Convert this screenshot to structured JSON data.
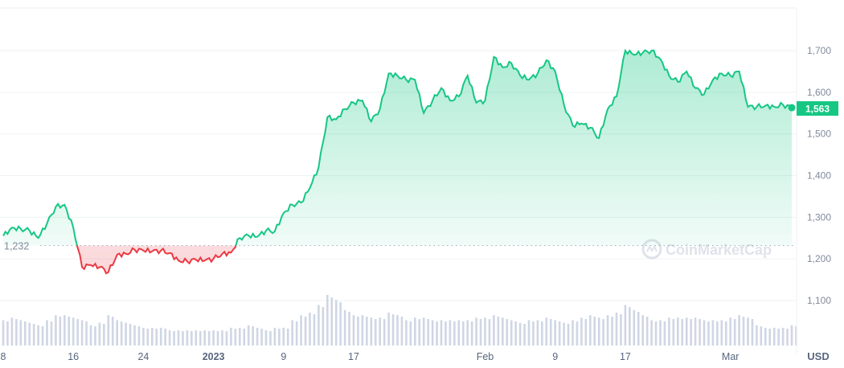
{
  "chart_data": {
    "type": "line",
    "title": "",
    "currency_label": "USD",
    "watermark": "CoinMarketCap",
    "baseline": 1232,
    "baseline_label": "1,232",
    "current_value": 1563,
    "current_label": "1,563",
    "ylim": [
      1000,
      1800
    ],
    "y_ticks": [
      1100,
      1200,
      1300,
      1400,
      1500,
      1600,
      1700
    ],
    "y_tick_labels": [
      "1,100",
      "1,200",
      "1,300",
      "1,400",
      "1,500",
      "1,600",
      "1,700"
    ],
    "x_start": "2022-12-08",
    "x_ticks": [
      {
        "date": "2022-12-08",
        "label": "8",
        "bold": false
      },
      {
        "date": "2022-12-16",
        "label": "16",
        "bold": false
      },
      {
        "date": "2022-12-24",
        "label": "24",
        "bold": false
      },
      {
        "date": "2023-01-01",
        "label": "2023",
        "bold": true
      },
      {
        "date": "2023-01-09",
        "label": "9",
        "bold": false
      },
      {
        "date": "2023-01-17",
        "label": "17",
        "bold": false
      },
      {
        "date": "2023-02-01",
        "label": "Feb",
        "bold": false
      },
      {
        "date": "2023-02-09",
        "label": "9",
        "bold": false
      },
      {
        "date": "2023-02-17",
        "label": "17",
        "bold": false
      },
      {
        "date": "2023-03-01",
        "label": "Mar",
        "bold": false
      }
    ],
    "colors": {
      "up": "#16c784",
      "down": "#ea3943",
      "volume": "#cfd6e4",
      "grid": "#eff2f5",
      "label": "#808a9d"
    },
    "daily_prices": [
      1255,
      1275,
      1272,
      1268,
      1250,
      1285,
      1325,
      1330,
      1275,
      1180,
      1185,
      1180,
      1168,
      1210,
      1212,
      1222,
      1220,
      1218,
      1220,
      1214,
      1196,
      1194,
      1198,
      1196,
      1200,
      1212,
      1215,
      1250,
      1256,
      1253,
      1268,
      1266,
      1310,
      1330,
      1335,
      1370,
      1420,
      1540,
      1535,
      1560,
      1575,
      1580,
      1530,
      1560,
      1645,
      1640,
      1630,
      1630,
      1550,
      1580,
      1610,
      1580,
      1590,
      1640,
      1575,
      1580,
      1685,
      1660,
      1670,
      1640,
      1630,
      1645,
      1677,
      1650,
      1570,
      1520,
      1525,
      1515,
      1490,
      1560,
      1590,
      1700,
      1690,
      1695,
      1700,
      1680,
      1640,
      1625,
      1650,
      1610,
      1595,
      1630,
      1645,
      1640,
      1650,
      1565,
      1565,
      1568,
      1565,
      1570,
      1563
    ],
    "relative_volume": [
      0.5,
      0.55,
      0.5,
      0.45,
      0.4,
      0.5,
      0.6,
      0.6,
      0.55,
      0.5,
      0.4,
      0.45,
      0.6,
      0.5,
      0.45,
      0.4,
      0.35,
      0.35,
      0.35,
      0.3,
      0.3,
      0.3,
      0.3,
      0.3,
      0.3,
      0.3,
      0.35,
      0.35,
      0.4,
      0.35,
      0.3,
      0.35,
      0.35,
      0.5,
      0.6,
      0.65,
      0.8,
      1.0,
      0.9,
      0.7,
      0.6,
      0.6,
      0.55,
      0.55,
      0.65,
      0.6,
      0.5,
      0.55,
      0.55,
      0.5,
      0.5,
      0.5,
      0.5,
      0.5,
      0.55,
      0.55,
      0.6,
      0.55,
      0.5,
      0.45,
      0.5,
      0.5,
      0.55,
      0.5,
      0.45,
      0.5,
      0.55,
      0.6,
      0.55,
      0.6,
      0.65,
      0.8,
      0.7,
      0.6,
      0.5,
      0.5,
      0.55,
      0.55,
      0.55,
      0.55,
      0.5,
      0.5,
      0.5,
      0.55,
      0.6,
      0.55,
      0.4,
      0.35,
      0.35,
      0.35,
      0.4
    ]
  }
}
